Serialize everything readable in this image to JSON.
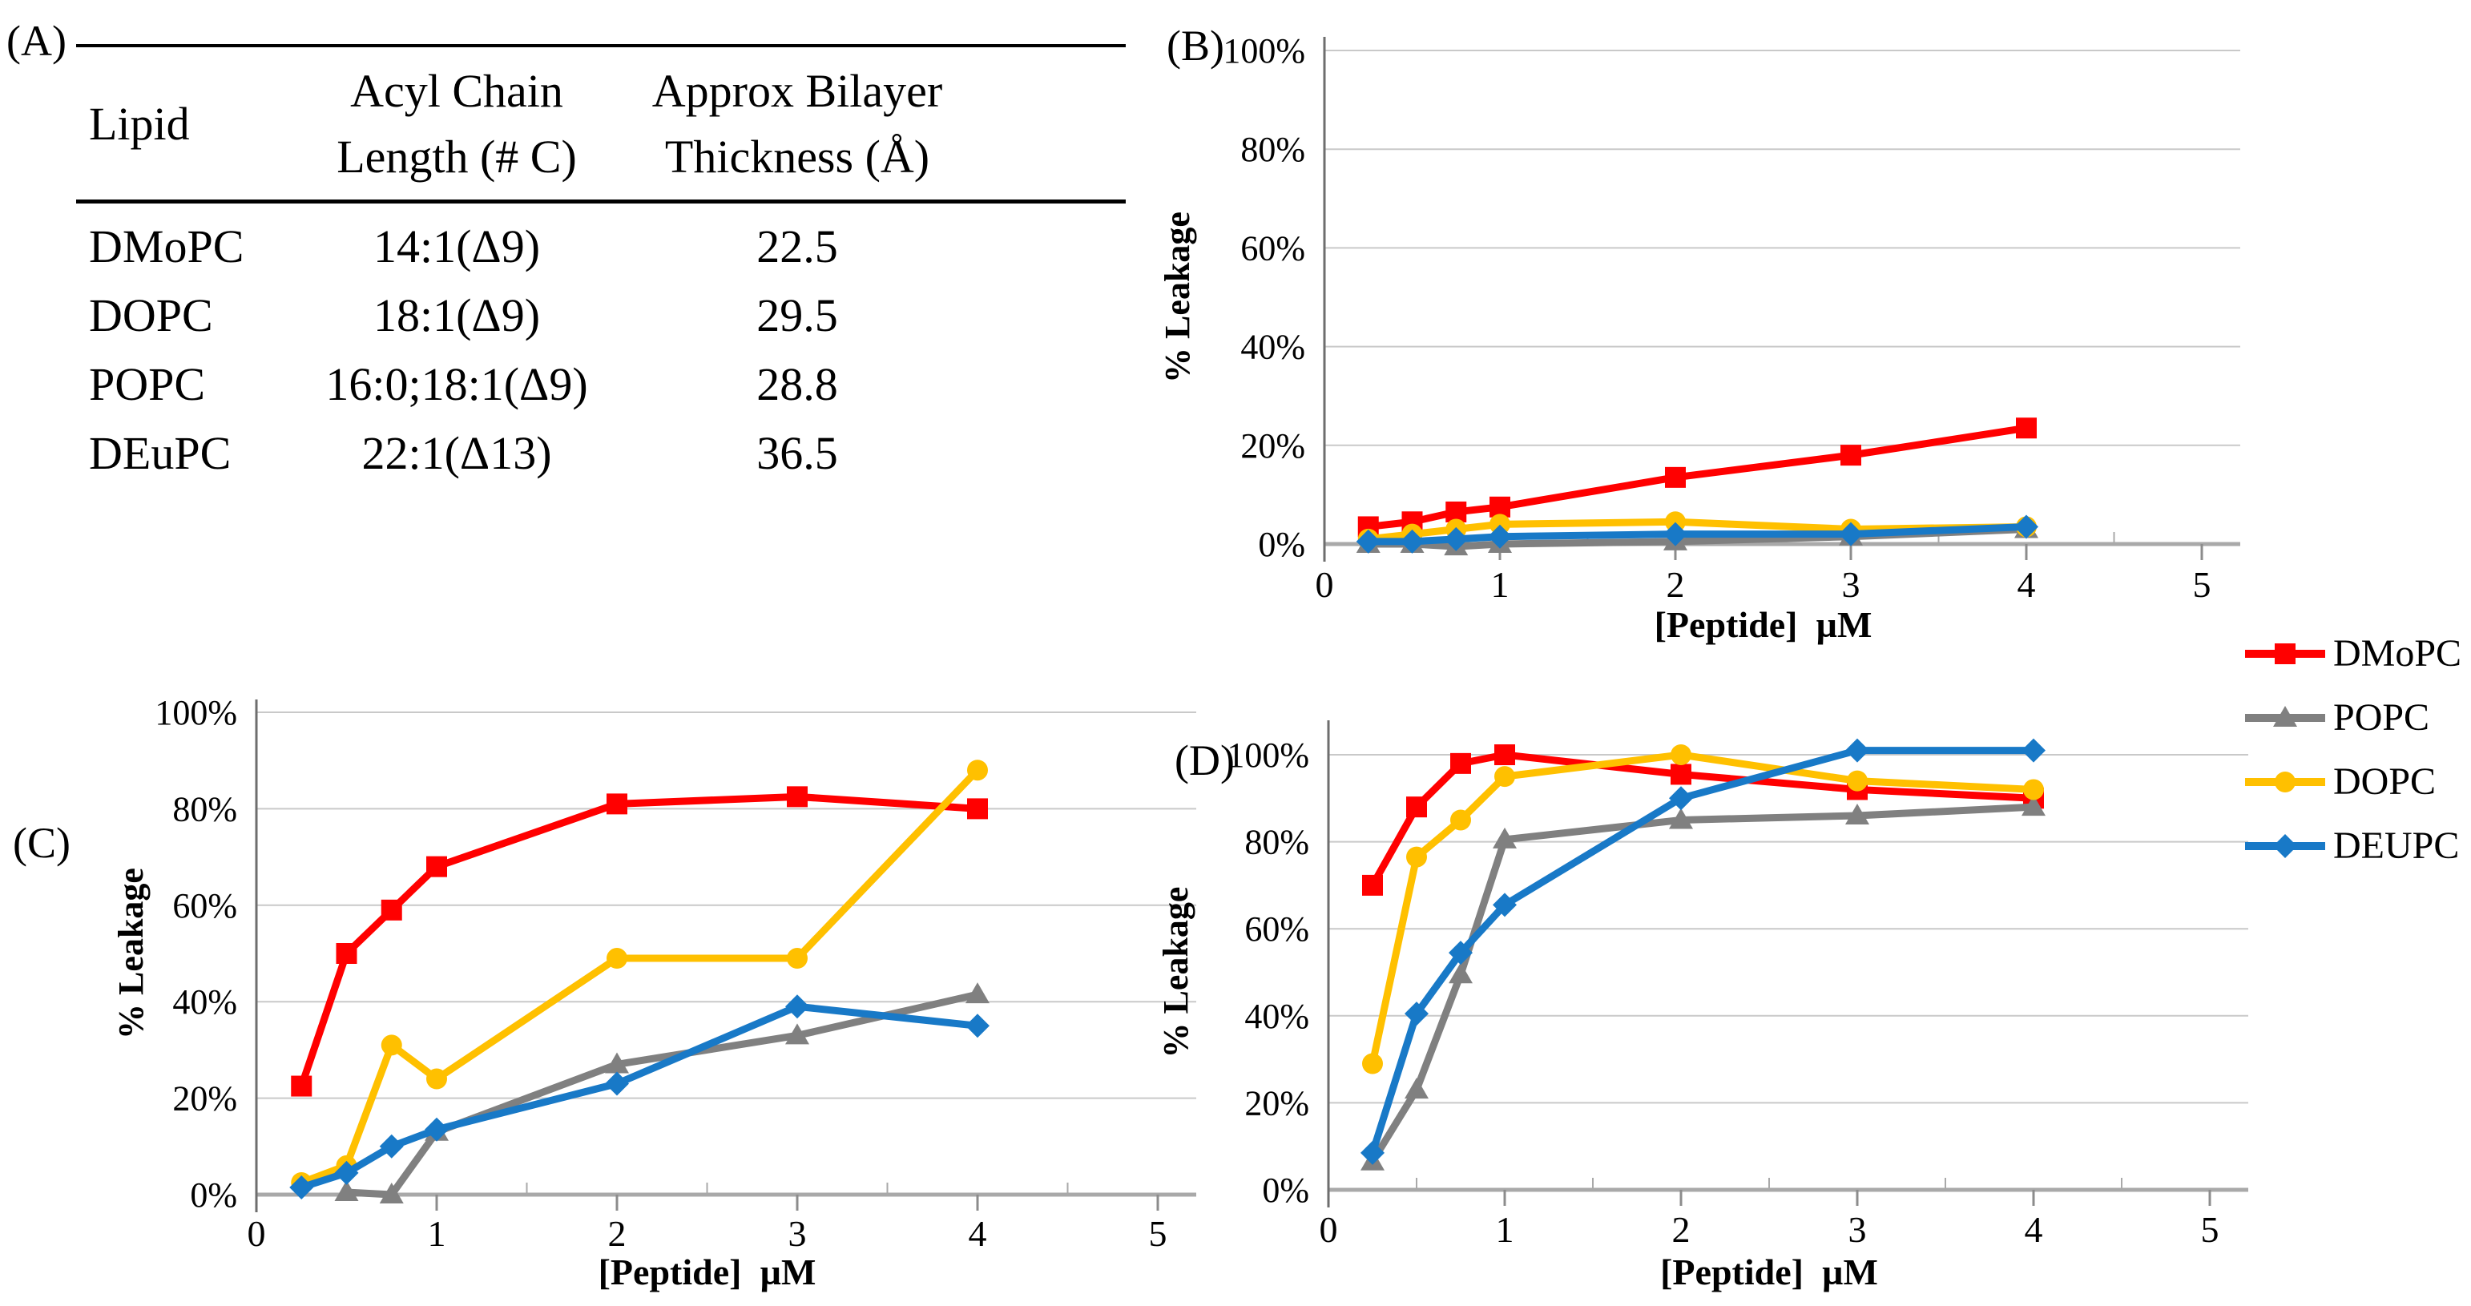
{
  "panels": {
    "a_label": "(A)"
  },
  "table": {
    "header": {
      "col1": "Lipid",
      "col2_line1": "Acyl Chain",
      "col2_line2": "Length (# C)",
      "col3_line1": "Approx Bilayer",
      "col3_line2": "Thickness (Å)"
    },
    "rows": [
      {
        "lipid": "DMoPC",
        "chain": "14:1(Δ9)",
        "thickness": "22.5"
      },
      {
        "lipid": "DOPC",
        "chain": "18:1(Δ9)",
        "thickness": "29.5"
      },
      {
        "lipid": "POPC",
        "chain": "16:0;18:1(Δ9)",
        "thickness": "28.8"
      },
      {
        "lipid": "DEuPC",
        "chain": "22:1(Δ13)",
        "thickness": "36.5"
      }
    ]
  },
  "legend": {
    "entries": [
      {
        "label": "DMoPC",
        "color": "#FF0000",
        "marker": "square"
      },
      {
        "label": "POPC",
        "color": "#808080",
        "marker": "triangle"
      },
      {
        "label": "DOPC",
        "color": "#FFC000",
        "marker": "circle"
      },
      {
        "label": "DEUPC",
        "color": "#1879C7",
        "marker": "diamond"
      }
    ]
  },
  "chart_data": [
    {
      "id": "B",
      "panel_label": "(B)",
      "type": "line",
      "xlabel": "[Peptide]  µM",
      "ylabel": "% Leakage",
      "xlim": [
        0,
        5
      ],
      "ylim": [
        0,
        100
      ],
      "grid": true,
      "legend_position": "right-of-figure",
      "x": [
        0.25,
        0.5,
        0.75,
        1,
        2,
        3,
        4
      ],
      "xticks": [
        0,
        1,
        2,
        3,
        4,
        5
      ],
      "xtick_labels": [
        "0",
        "1",
        "2",
        "3",
        "4",
        "5"
      ],
      "yticks": [
        0,
        20,
        40,
        60,
        80,
        100
      ],
      "ytick_labels": [
        "0%",
        "20%",
        "40%",
        "60%",
        "80%",
        "100%"
      ],
      "series": [
        {
          "name": "DMoPC",
          "color": "#FF0000",
          "marker": "square",
          "values": [
            3.5,
            4.5,
            6.5,
            7.5,
            13.5,
            18,
            23.5
          ]
        },
        {
          "name": "POPC",
          "color": "#808080",
          "marker": "triangle",
          "values": [
            0,
            0,
            -0.5,
            0,
            0.5,
            1.5,
            3
          ]
        },
        {
          "name": "DOPC",
          "color": "#FFC000",
          "marker": "circle",
          "values": [
            1,
            2,
            3,
            4,
            4.5,
            3,
            3.5
          ]
        },
        {
          "name": "DEUPC",
          "color": "#1879C7",
          "marker": "diamond",
          "values": [
            0.5,
            0.5,
            1,
            1.5,
            2,
            2,
            3.5
          ]
        }
      ]
    },
    {
      "id": "C",
      "panel_label": "(C)",
      "type": "line",
      "xlabel": "[Peptide]  µM",
      "ylabel": "% Leakage",
      "xlim": [
        0,
        5
      ],
      "ylim": [
        0,
        100
      ],
      "grid": true,
      "legend_position": "right-of-figure",
      "x": [
        0.25,
        0.5,
        0.75,
        1,
        2,
        3,
        4
      ],
      "xticks": [
        0,
        1,
        2,
        3,
        4,
        5
      ],
      "xtick_labels": [
        "0",
        "1",
        "2",
        "3",
        "4",
        "5"
      ],
      "yticks": [
        0,
        20,
        40,
        60,
        80,
        100
      ],
      "ytick_labels": [
        "0%",
        "20%",
        "40%",
        "60%",
        "80%",
        "100%"
      ],
      "series": [
        {
          "name": "DMoPC",
          "color": "#FF0000",
          "marker": "square",
          "values": [
            22.5,
            50,
            59,
            68,
            81,
            82.5,
            80
          ]
        },
        {
          "name": "POPC",
          "color": "#808080",
          "marker": "triangle",
          "values": [
            null,
            0.5,
            0,
            13,
            27,
            33,
            41.5
          ]
        },
        {
          "name": "DOPC",
          "color": "#FFC000",
          "marker": "circle",
          "values": [
            2.5,
            6,
            31,
            24,
            49,
            49,
            88
          ]
        },
        {
          "name": "DEUPC",
          "color": "#1879C7",
          "marker": "diamond",
          "values": [
            1.5,
            4.5,
            10,
            13.5,
            23,
            39,
            35
          ]
        }
      ]
    },
    {
      "id": "D",
      "panel_label": "(D)",
      "type": "line",
      "xlabel": "[Peptide]  µM",
      "ylabel": "% Leakage",
      "xlim": [
        0,
        5
      ],
      "ylim": [
        0,
        105
      ],
      "grid": true,
      "legend_position": "right-of-figure",
      "x": [
        0.25,
        0.5,
        0.75,
        1,
        2,
        3,
        4
      ],
      "xticks": [
        0,
        1,
        2,
        3,
        4,
        5
      ],
      "xtick_labels": [
        "0",
        "1",
        "2",
        "3",
        "4",
        "5"
      ],
      "yticks": [
        0,
        20,
        40,
        60,
        80,
        100
      ],
      "ytick_labels": [
        "0%",
        "20%",
        "40%",
        "60%",
        "80%",
        "100%"
      ],
      "series": [
        {
          "name": "DMoPC",
          "color": "#FF0000",
          "marker": "square",
          "values": [
            70,
            88,
            98,
            100,
            95.5,
            92,
            90
          ]
        },
        {
          "name": "POPC",
          "color": "#808080",
          "marker": "triangle",
          "values": [
            6.5,
            23,
            49.5,
            80.5,
            85,
            86,
            88
          ]
        },
        {
          "name": "DOPC",
          "color": "#FFC000",
          "marker": "circle",
          "values": [
            29,
            76.5,
            85,
            95,
            100,
            94,
            92
          ]
        },
        {
          "name": "DEUPC",
          "color": "#1879C7",
          "marker": "diamond",
          "values": [
            8.5,
            40.5,
            54.5,
            65.5,
            90,
            101,
            101
          ]
        }
      ]
    }
  ]
}
